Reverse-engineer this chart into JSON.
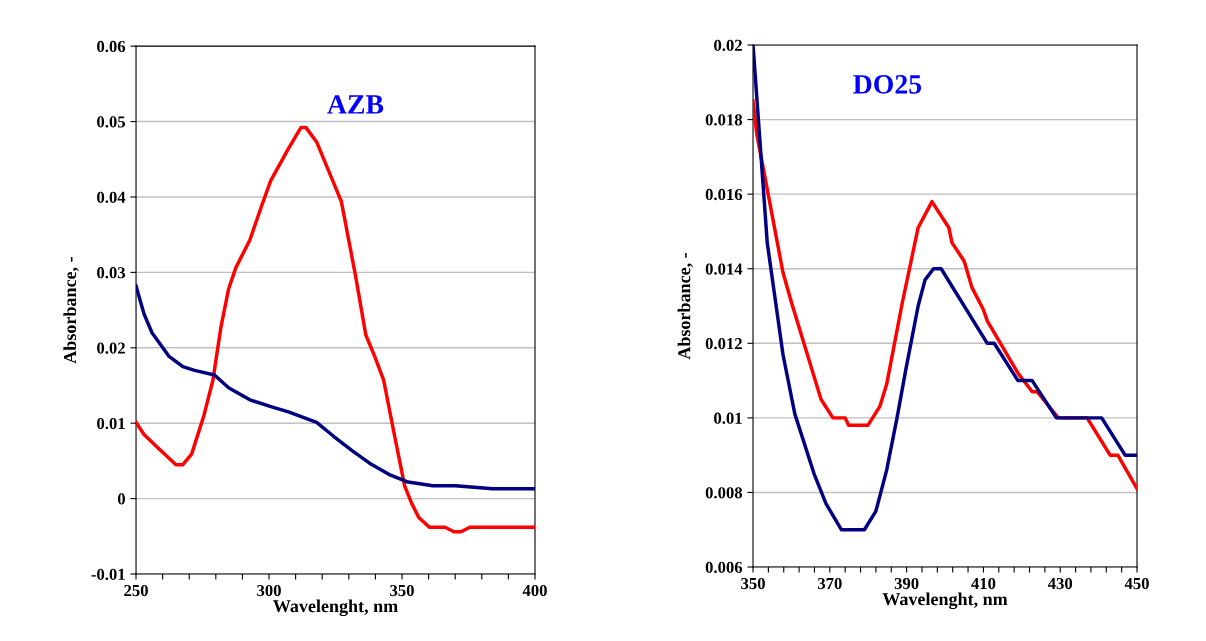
{
  "chart_data": [
    {
      "type": "line",
      "title": "AZB",
      "xlabel": "Wavelenght, nm",
      "ylabel": "Absorbance, -",
      "xlim": [
        250,
        400
      ],
      "ylim": [
        -0.01,
        0.06
      ],
      "xticks": [
        250,
        {
          "value": 260,
          "label": null
        },
        {
          "value": 270,
          "label": null
        },
        {
          "value": 280,
          "label": null
        },
        {
          "value": 290,
          "label": null
        },
        300,
        {
          "value": 310,
          "label": null
        },
        {
          "value": 320,
          "label": null
        },
        {
          "value": 330,
          "label": null
        },
        {
          "value": 340,
          "label": null
        },
        350,
        {
          "value": 360,
          "label": null
        },
        {
          "value": 370,
          "label": null
        },
        {
          "value": 380,
          "label": null
        },
        {
          "value": 390,
          "label": null
        },
        400
      ],
      "yticks": [
        {
          "value": -0.01,
          "label": "-0.01"
        },
        0,
        0.01,
        0.02,
        0.03,
        0.04,
        0.05,
        0.06
      ],
      "grid": "y",
      "series": [
        {
          "color": "#ff0000",
          "x": [
            250,
            253,
            258,
            265,
            267.6,
            270.9,
            275.5,
            278.9,
            281.9,
            284.8,
            287.5,
            292.8,
            297.4,
            300.7,
            307.3,
            312,
            313.9,
            317.9,
            323.9,
            327.2,
            332.5,
            336.4,
            339.7,
            343.1,
            347,
            351,
            353.6,
            356.3,
            360.3,
            366.2,
            369.5,
            372.2,
            375.5,
            400
          ],
          "values": [
            0.0101,
            0.0085,
            0.0068,
            0.0045,
            0.0045,
            0.0059,
            0.011,
            0.0157,
            0.0227,
            0.0278,
            0.0306,
            0.0343,
            0.039,
            0.0422,
            0.0464,
            0.0492,
            0.0492,
            0.0473,
            0.0422,
            0.0394,
            0.0296,
            0.0217,
            0.0189,
            0.0157,
            0.0087,
            0.0017,
            -0.0006,
            -0.0025,
            -0.0038,
            -0.0038,
            -0.0044,
            -0.0044,
            -0.0038,
            -0.0038
          ]
        },
        {
          "color": "#000080",
          "x": [
            250,
            253,
            256,
            262.3,
            267.6,
            272,
            279.5,
            284.8,
            292.8,
            300.7,
            307.3,
            317.9,
            324.5,
            331.1,
            337.8,
            345.7,
            352.3,
            361.6,
            370,
            384.1,
            400
          ],
          "values": [
            0.0282,
            0.0245,
            0.022,
            0.0189,
            0.0175,
            0.017,
            0.0164,
            0.0147,
            0.0131,
            0.0122,
            0.0115,
            0.0101,
            0.0082,
            0.0064,
            0.0047,
            0.0031,
            0.0022,
            0.0017,
            0.0017,
            0.0013,
            0.0013
          ]
        }
      ]
    },
    {
      "type": "line",
      "title": "DO25",
      "xlabel": "Wavelenght, nm",
      "ylabel": "Absorbance, -",
      "xlim": [
        350,
        450
      ],
      "ylim": [
        0.006,
        0.02
      ],
      "xticks": [
        350,
        {
          "value": 354,
          "label": null
        },
        {
          "value": 358,
          "label": null
        },
        {
          "value": 362,
          "label": null
        },
        {
          "value": 366,
          "label": null
        },
        370,
        {
          "value": 374,
          "label": null
        },
        {
          "value": 378,
          "label": null
        },
        {
          "value": 382,
          "label": null
        },
        {
          "value": 386,
          "label": null
        },
        390,
        {
          "value": 394,
          "label": null
        },
        {
          "value": 398,
          "label": null
        },
        {
          "value": 402,
          "label": null
        },
        {
          "value": 406,
          "label": null
        },
        410,
        {
          "value": 414,
          "label": null
        },
        {
          "value": 418,
          "label": null
        },
        {
          "value": 422,
          "label": null
        },
        {
          "value": 426,
          "label": null
        },
        430,
        {
          "value": 434,
          "label": null
        },
        {
          "value": 438,
          "label": null
        },
        {
          "value": 442,
          "label": null
        },
        {
          "value": 446,
          "label": null
        },
        450
      ],
      "yticks": [
        0.006,
        0.008,
        {
          "value": 0.01,
          "label": "0.01"
        },
        0.012,
        0.014,
        0.016,
        0.018,
        {
          "value": 0.02,
          "label": "0.02"
        }
      ],
      "grid": "y",
      "series": [
        {
          "color": "#ff0000",
          "x": [
            350,
            351,
            357.8,
            360,
            367.7,
            370.8,
            374,
            374.9,
            379.9,
            383,
            384.8,
            388.9,
            393,
            396.6,
            401,
            401.8,
            405,
            407,
            410,
            411,
            419,
            422.7,
            424,
            429.5,
            437,
            443,
            445,
            450
          ],
          "values": [
            0.0185,
            0.0176,
            0.0139,
            0.0131,
            0.0105,
            0.01,
            0.01,
            0.0098,
            0.0098,
            0.0103,
            0.0109,
            0.0131,
            0.0151,
            0.0158,
            0.0151,
            0.0147,
            0.0142,
            0.0135,
            0.0129,
            0.0126,
            0.0112,
            0.0107,
            0.0107,
            0.01,
            0.01,
            0.009,
            0.009,
            0.0081
          ]
        },
        {
          "color": "#000080",
          "x": [
            350,
            353.7,
            357.8,
            360.9,
            365.9,
            369,
            373,
            379,
            382,
            384.8,
            387.5,
            389.8,
            393,
            394.8,
            397,
            399,
            411,
            412.8,
            419,
            422.7,
            429,
            440.8,
            446.9,
            450
          ],
          "values": [
            0.02,
            0.0147,
            0.0117,
            0.0101,
            0.0085,
            0.0077,
            0.007,
            0.007,
            0.0075,
            0.0086,
            0.01,
            0.0113,
            0.013,
            0.0137,
            0.014,
            0.014,
            0.012,
            0.012,
            0.011,
            0.011,
            0.01,
            0.01,
            0.009,
            0.009
          ]
        }
      ]
    }
  ]
}
